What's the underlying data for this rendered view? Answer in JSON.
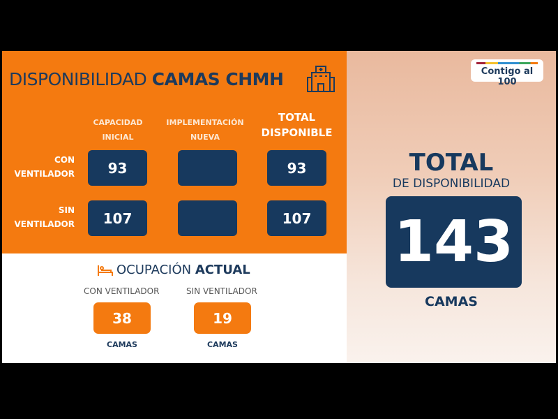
{
  "header": {
    "title_light": "DISPONIBILIDAD",
    "title_bold": "CAMAS CHMH",
    "icon": "hospital-icon"
  },
  "columns": [
    "CAPACIDAD INICIAL",
    "IMPLEMENTACIÓN NUEVA",
    "TOTAL DISPONIBLE"
  ],
  "rows": [
    {
      "label": "CON VENTILADOR",
      "capacidad_inicial": "93",
      "implementacion_nueva": "",
      "total_disponible": "93"
    },
    {
      "label": "SIN VENTILADOR",
      "capacidad_inicial": "107",
      "implementacion_nueva": "",
      "total_disponible": "107"
    }
  ],
  "ocupacion": {
    "title_light": "OCUPACIÓN",
    "title_bold": "ACTUAL",
    "icon": "bed-icon",
    "items": [
      {
        "label": "CON VENTILADOR",
        "value": "38",
        "unit": "CAMAS"
      },
      {
        "label": "SIN VENTILADOR",
        "value": "19",
        "unit": "CAMAS"
      }
    ]
  },
  "total": {
    "title": "TOTAL",
    "subtitle": "DE DISPONIBILIDAD",
    "value": "143",
    "unit": "CAMAS"
  },
  "logo": "Contigo al 100",
  "colors": {
    "orange": "#f47a10",
    "navy": "#17395e"
  }
}
